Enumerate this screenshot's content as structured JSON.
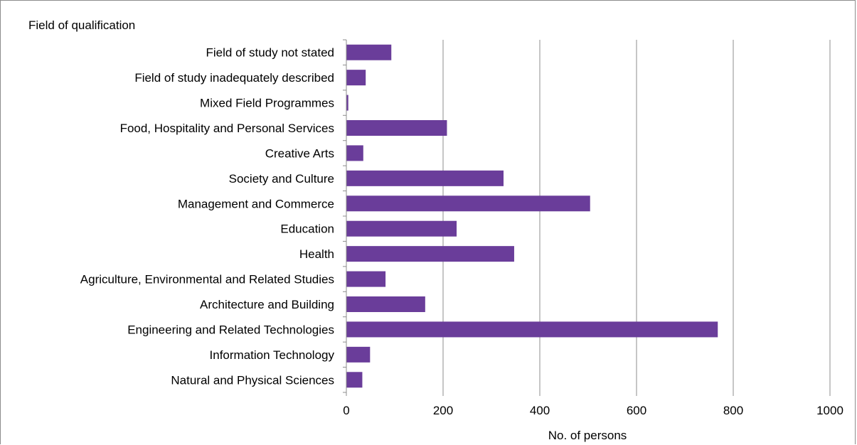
{
  "chart_data": {
    "type": "bar",
    "orientation": "horizontal",
    "ylabel": "Field of qualification",
    "xlabel": "No. of persons",
    "xlim": [
      0,
      1000
    ],
    "xticks": [
      0,
      200,
      400,
      600,
      800,
      1000
    ],
    "grid": "vertical",
    "legend": "none",
    "bar_color": "#6a3d9a",
    "categories": [
      "Field of study not stated",
      "Field of study inadequately described",
      "Mixed Field Programmes",
      "Food, Hospitality and Personal Services",
      "Creative Arts",
      "Society and Culture",
      "Management and Commerce",
      "Education",
      "Health",
      "Agriculture, Environmental and Related Studies",
      "Architecture and Building",
      "Engineering and Related Technologies",
      "Information Technology",
      "Natural and Physical Sciences"
    ],
    "values": [
      93,
      40,
      4,
      208,
      35,
      325,
      504,
      228,
      347,
      81,
      163,
      768,
      49,
      33
    ]
  }
}
